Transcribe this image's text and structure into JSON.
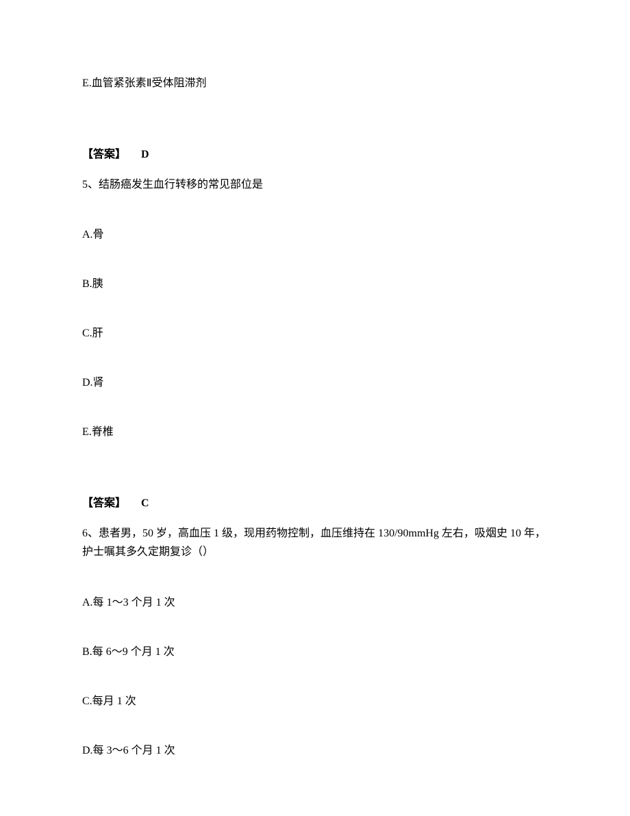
{
  "q_prev": {
    "option_e": "E.血管紧张素Ⅱ受体阻滞剂",
    "answer_label": "【答案】",
    "answer_value": "D"
  },
  "q5": {
    "number": "5、",
    "stem": "结肠癌发生血行转移的常见部位是",
    "options": {
      "a": "A.骨",
      "b": "B.胰",
      "c": "C.肝",
      "d": "D.肾",
      "e": "E.脊椎"
    },
    "answer_label": "【答案】",
    "answer_value": "C"
  },
  "q6": {
    "number": "6、",
    "stem_part1": "患者男，",
    "age": "50",
    "stem_part2": " 岁，高血压 ",
    "grade": "1",
    "stem_part3": " 级，现用药物控制，血压维持在 ",
    "bp": "130/90mmHg",
    "stem_part4": " 左右，吸烟史 ",
    "years": "10",
    "stem_part5": " 年，护士嘱其多久定期复诊（）",
    "options": {
      "a_pre": "A.每 ",
      "a_range": "1～3",
      "a_mid": " 个月 ",
      "a_count": "1",
      "a_post": " 次",
      "b_pre": "B.每 ",
      "b_range": "6～9",
      "b_mid": " 个月 ",
      "b_count": "1",
      "b_post": " 次",
      "c_pre": "C.每月 ",
      "c_count": "1",
      "c_post": " 次",
      "d_pre": "D.每 ",
      "d_range": "3～6",
      "d_mid": " 个月 ",
      "d_count": "1",
      "d_post": " 次"
    }
  }
}
